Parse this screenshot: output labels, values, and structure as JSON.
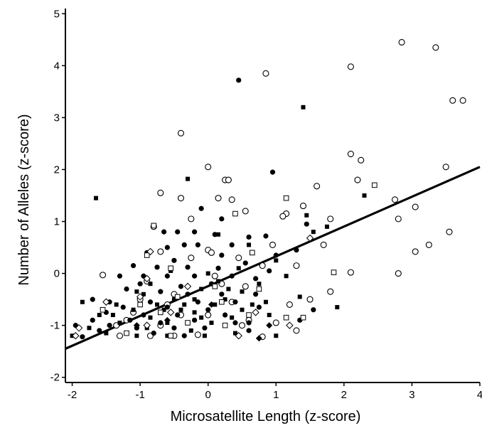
{
  "chart_data": {
    "type": "scatter",
    "title": "",
    "xlabel": "Microsatellite Length (z-score)",
    "ylabel": "Number of Alleles (z-score)",
    "xlim": [
      -2.1,
      4.0
    ],
    "ylim": [
      -2.1,
      5.1
    ],
    "x_ticks": [
      "-2",
      "-1",
      "0",
      "1",
      "2",
      "3",
      "4"
    ],
    "y_ticks": [
      "-2",
      "-1",
      "0",
      "1",
      "2",
      "3",
      "4",
      "5"
    ],
    "grid": false,
    "legend": "none",
    "regression_line": {
      "x": [
        -2.1,
        4.0
      ],
      "y": [
        -1.45,
        2.05
      ]
    },
    "series": [
      {
        "marker": "open-circle",
        "points": [
          [
            2.85,
            4.45
          ],
          [
            3.35,
            4.35
          ],
          [
            2.1,
            3.98
          ],
          [
            0.85,
            3.85
          ],
          [
            3.6,
            3.33
          ],
          [
            3.75,
            3.33
          ],
          [
            -0.4,
            2.7
          ],
          [
            2.1,
            2.3
          ],
          [
            2.25,
            2.18
          ],
          [
            0.0,
            2.05
          ],
          [
            3.5,
            2.05
          ],
          [
            2.2,
            1.8
          ],
          [
            0.25,
            1.8
          ],
          [
            0.3,
            1.8
          ],
          [
            -0.7,
            1.55
          ],
          [
            1.6,
            1.68
          ],
          [
            -0.4,
            1.45
          ],
          [
            0.15,
            1.45
          ],
          [
            0.35,
            1.42
          ],
          [
            2.75,
            1.42
          ],
          [
            3.05,
            1.28
          ],
          [
            1.4,
            1.3
          ],
          [
            0.55,
            1.2
          ],
          [
            1.15,
            1.15
          ],
          [
            -0.25,
            1.05
          ],
          [
            2.8,
            1.05
          ],
          [
            1.1,
            1.1
          ],
          [
            -0.8,
            0.9
          ],
          [
            1.8,
            1.05
          ],
          [
            3.55,
            0.8
          ],
          [
            0.0,
            0.45
          ],
          [
            0.05,
            0.4
          ],
          [
            0.95,
            0.55
          ],
          [
            3.25,
            0.55
          ],
          [
            3.05,
            0.42
          ],
          [
            -0.7,
            0.42
          ],
          [
            -1.55,
            -0.03
          ],
          [
            2.1,
            0.02
          ],
          [
            2.8,
            0.0
          ],
          [
            1.7,
            0.55
          ],
          [
            0.8,
            0.15
          ],
          [
            -0.25,
            0.3
          ],
          [
            1.3,
            0.15
          ],
          [
            0.1,
            -0.05
          ],
          [
            -0.9,
            -0.15
          ],
          [
            0.55,
            -0.25
          ],
          [
            1.8,
            -0.35
          ],
          [
            -0.5,
            -0.4
          ],
          [
            0.35,
            -0.55
          ],
          [
            1.5,
            -0.5
          ],
          [
            1.2,
            -0.6
          ],
          [
            -1.1,
            -0.75
          ],
          [
            -0.4,
            -0.8
          ],
          [
            0.0,
            -0.8
          ],
          [
            0.6,
            -0.9
          ],
          [
            1.0,
            -0.95
          ],
          [
            -1.35,
            -1.0
          ],
          [
            -0.7,
            -1.0
          ],
          [
            0.5,
            -1.0
          ],
          [
            1.3,
            -1.1
          ],
          [
            -1.3,
            -1.2
          ],
          [
            -0.85,
            -1.2
          ],
          [
            -0.5,
            -1.2
          ],
          [
            -0.15,
            -1.18
          ],
          [
            0.8,
            -1.22
          ],
          [
            -1.0,
            -0.5
          ],
          [
            0.2,
            -0.2
          ],
          [
            -0.6,
            -0.6
          ],
          [
            0.45,
            0.3
          ],
          [
            -1.2,
            -0.9
          ]
        ]
      },
      {
        "marker": "filled-circle",
        "points": [
          [
            0.45,
            3.72
          ],
          [
            0.95,
            1.95
          ],
          [
            -0.1,
            1.25
          ],
          [
            0.2,
            1.05
          ],
          [
            -0.65,
            0.8
          ],
          [
            -0.45,
            0.8
          ],
          [
            -0.2,
            0.8
          ],
          [
            0.1,
            0.75
          ],
          [
            0.6,
            0.7
          ],
          [
            0.85,
            0.72
          ],
          [
            0.35,
            0.55
          ],
          [
            -0.6,
            0.5
          ],
          [
            -0.35,
            0.55
          ],
          [
            -0.15,
            0.55
          ],
          [
            1.3,
            0.45
          ],
          [
            -0.9,
            0.4
          ],
          [
            0.2,
            0.35
          ],
          [
            1.0,
            0.35
          ],
          [
            -0.5,
            0.25
          ],
          [
            0.55,
            0.2
          ],
          [
            -1.1,
            0.15
          ],
          [
            -0.75,
            0.12
          ],
          [
            -0.3,
            0.12
          ],
          [
            0.15,
            0.1
          ],
          [
            0.9,
            0.05
          ],
          [
            -1.3,
            -0.05
          ],
          [
            -0.95,
            -0.05
          ],
          [
            -0.6,
            -0.05
          ],
          [
            -0.2,
            -0.05
          ],
          [
            0.35,
            -0.05
          ],
          [
            0.7,
            -0.1
          ],
          [
            -1.0,
            -0.2
          ],
          [
            -0.4,
            -0.25
          ],
          [
            0.05,
            -0.2
          ],
          [
            -1.2,
            -0.3
          ],
          [
            -0.7,
            -0.35
          ],
          [
            -0.3,
            -0.4
          ],
          [
            0.2,
            -0.4
          ],
          [
            0.7,
            -0.4
          ],
          [
            -1.7,
            -0.5
          ],
          [
            -1.45,
            -0.55
          ],
          [
            -0.85,
            -0.55
          ],
          [
            -0.15,
            -0.55
          ],
          [
            0.4,
            -0.55
          ],
          [
            -1.25,
            -0.65
          ],
          [
            -0.6,
            -0.65
          ],
          [
            0.0,
            -0.7
          ],
          [
            0.75,
            -0.65
          ],
          [
            -1.5,
            -0.75
          ],
          [
            -0.95,
            -0.8
          ],
          [
            -0.45,
            -0.8
          ],
          [
            0.25,
            -0.8
          ],
          [
            -1.7,
            -0.9
          ],
          [
            -1.15,
            -0.9
          ],
          [
            -0.7,
            -0.95
          ],
          [
            -0.2,
            -0.9
          ],
          [
            0.4,
            -0.95
          ],
          [
            -1.95,
            -1.0
          ],
          [
            -1.45,
            -1.0
          ],
          [
            -1.05,
            -1.05
          ],
          [
            -0.5,
            -1.05
          ],
          [
            -0.05,
            -1.05
          ],
          [
            0.6,
            -1.1
          ],
          [
            -1.6,
            -1.1
          ],
          [
            -1.2,
            -1.15
          ],
          [
            -0.8,
            -1.15
          ],
          [
            -0.35,
            -1.2
          ],
          [
            -1.85,
            -1.22
          ],
          [
            1.55,
            -0.7
          ],
          [
            1.45,
            0.95
          ],
          [
            1.35,
            -0.9
          ],
          [
            0.6,
            -0.95
          ]
        ]
      },
      {
        "marker": "filled-square",
        "points": [
          [
            1.4,
            3.2
          ],
          [
            -1.65,
            1.45
          ],
          [
            -0.3,
            1.82
          ],
          [
            2.3,
            1.5
          ],
          [
            1.45,
            1.12
          ],
          [
            1.75,
            0.9
          ],
          [
            1.55,
            0.8
          ],
          [
            0.15,
            0.75
          ],
          [
            1.9,
            -0.65
          ],
          [
            1.35,
            -0.45
          ],
          [
            1.0,
            0.25
          ],
          [
            0.45,
            0.1
          ],
          [
            -0.55,
            0.05
          ],
          [
            0.0,
            0.0
          ],
          [
            0.75,
            -0.2
          ],
          [
            -0.85,
            -0.2
          ],
          [
            -0.1,
            -0.3
          ],
          [
            0.5,
            -0.35
          ],
          [
            -1.05,
            -0.35
          ],
          [
            0.25,
            -0.5
          ],
          [
            -0.5,
            -0.5
          ],
          [
            -0.2,
            -0.5
          ],
          [
            0.85,
            -0.55
          ],
          [
            -1.35,
            -0.6
          ],
          [
            -0.75,
            -0.6
          ],
          [
            0.1,
            -0.6
          ],
          [
            -1.1,
            -0.7
          ],
          [
            -0.4,
            -0.7
          ],
          [
            0.5,
            -0.7
          ],
          [
            -1.6,
            -0.8
          ],
          [
            -0.85,
            -0.85
          ],
          [
            -0.1,
            -0.85
          ],
          [
            0.35,
            -0.85
          ],
          [
            -1.3,
            -0.95
          ],
          [
            -0.6,
            -0.95
          ],
          [
            0.05,
            -0.95
          ],
          [
            -1.75,
            -1.05
          ],
          [
            -0.9,
            -1.05
          ],
          [
            -0.25,
            -1.1
          ],
          [
            -1.5,
            -1.15
          ],
          [
            -1.05,
            -1.2
          ],
          [
            -0.6,
            -1.2
          ],
          [
            -2.0,
            -1.2
          ],
          [
            -0.65,
            -0.7
          ],
          [
            0.65,
            -0.6
          ],
          [
            -0.2,
            -0.75
          ],
          [
            -1.85,
            -0.55
          ],
          [
            0.3,
            -0.3
          ],
          [
            1.15,
            -0.05
          ],
          [
            0.6,
            0.55
          ],
          [
            1.0,
            -1.2
          ],
          [
            -0.05,
            -1.2
          ],
          [
            0.4,
            -1.15
          ],
          [
            -1.4,
            -0.8
          ],
          [
            -0.95,
            -0.4
          ],
          [
            0.15,
            -0.15
          ],
          [
            0.9,
            -0.8
          ],
          [
            -0.35,
            -0.6
          ]
        ]
      },
      {
        "marker": "open-square",
        "points": [
          [
            2.45,
            1.7
          ],
          [
            1.15,
            1.45
          ],
          [
            -0.8,
            0.92
          ],
          [
            0.4,
            1.15
          ],
          [
            0.65,
            0.4
          ],
          [
            -0.9,
            0.35
          ],
          [
            -0.55,
            0.1
          ],
          [
            0.1,
            -0.25
          ],
          [
            1.85,
            0.02
          ],
          [
            -0.45,
            -0.45
          ],
          [
            0.2,
            -0.55
          ],
          [
            -1.0,
            -0.6
          ],
          [
            0.6,
            -0.8
          ],
          [
            1.15,
            -0.85
          ],
          [
            -0.3,
            -0.95
          ],
          [
            -1.55,
            -0.7
          ],
          [
            -0.7,
            -0.75
          ],
          [
            0.75,
            -0.3
          ],
          [
            1.4,
            -0.85
          ],
          [
            0.25,
            -1.0
          ],
          [
            -1.2,
            -1.15
          ],
          [
            -0.55,
            -1.2
          ]
        ]
      },
      {
        "marker": "open-diamond",
        "points": [
          [
            1.5,
            0.68
          ],
          [
            -0.85,
            0.42
          ],
          [
            -0.9,
            -0.1
          ],
          [
            -1.0,
            -0.45
          ],
          [
            -1.5,
            -0.55
          ],
          [
            -1.9,
            -1.05
          ],
          [
            -1.95,
            -1.2
          ],
          [
            -0.55,
            -0.75
          ],
          [
            -0.9,
            -1.0
          ],
          [
            1.2,
            -1.0
          ],
          [
            0.45,
            -1.2
          ],
          [
            -0.3,
            -0.25
          ],
          [
            0.7,
            -0.75
          ]
        ]
      },
      {
        "marker": "filled-diamond",
        "points": [
          [
            0.75,
            -1.25
          ],
          [
            -0.6,
            -0.9
          ],
          [
            0.05,
            -0.6
          ],
          [
            0.9,
            -1.0
          ],
          [
            -1.05,
            -1.0
          ]
        ]
      }
    ]
  }
}
